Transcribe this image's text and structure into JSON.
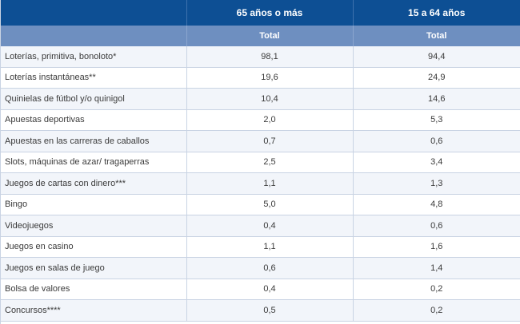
{
  "table": {
    "columns": [
      "65 años o más",
      "15 a 64 años"
    ],
    "subheaders": [
      "Total",
      "Total"
    ],
    "rows": [
      {
        "label": "Loterías, primitiva, bonoloto*",
        "a": "98,1",
        "b": "94,4"
      },
      {
        "label": "Loterías instantáneas**",
        "a": "19,6",
        "b": "24,9"
      },
      {
        "label": "Quinielas de fútbol y/o quinigol",
        "a": "10,4",
        "b": "14,6"
      },
      {
        "label": "Apuestas deportivas",
        "a": "2,0",
        "b": "5,3"
      },
      {
        "label": "Apuestas en las carreras de caballos",
        "a": "0,7",
        "b": "0,6"
      },
      {
        "label": "Slots, máquinas de azar/ tragaperras",
        "a": "2,5",
        "b": "3,4"
      },
      {
        "label": "Juegos de cartas con dinero***",
        "a": "1,1",
        "b": "1,3"
      },
      {
        "label": "Bingo",
        "a": "5,0",
        "b": "4,8"
      },
      {
        "label": "Videojuegos",
        "a": "0,4",
        "b": "0,6"
      },
      {
        "label": "Juegos en casino",
        "a": "1,1",
        "b": "1,6"
      },
      {
        "label": "Juegos en salas de juego",
        "a": "0,6",
        "b": "1,4"
      },
      {
        "label": "Bolsa de valores",
        "a": "0,4",
        "b": "0,2"
      },
      {
        "label": "Concursos****",
        "a": "0,5",
        "b": "0,2"
      }
    ]
  }
}
